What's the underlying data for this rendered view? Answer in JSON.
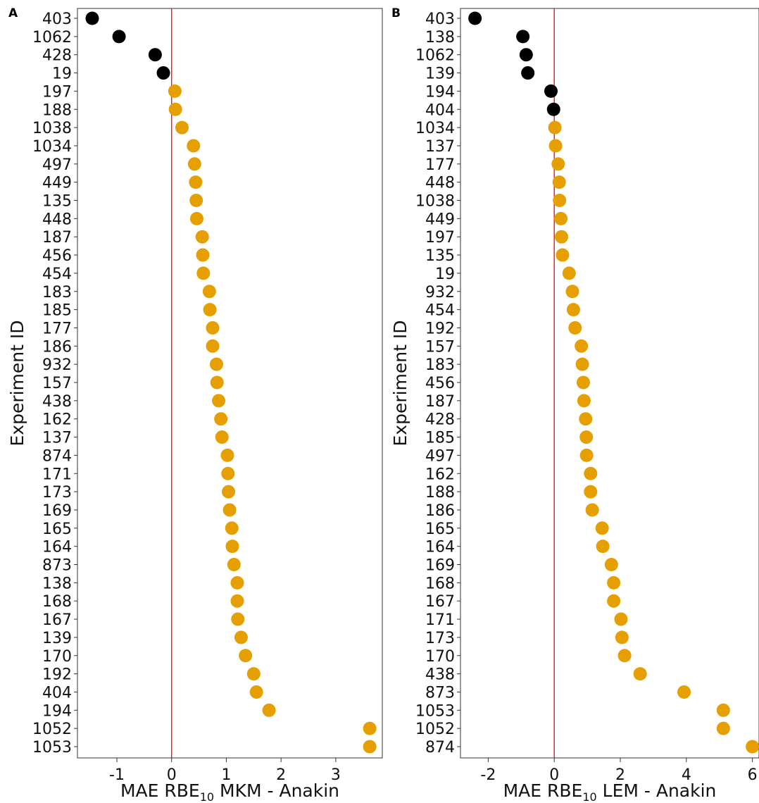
{
  "chart_data": [
    {
      "type": "scatter",
      "panel_label": "A",
      "ylabel": "Experiment ID",
      "xlabel": {
        "main": "MAE RBE",
        "sub": "10",
        "rest": " MKM - Anakin"
      },
      "xlim": [
        -1.72,
        3.85
      ],
      "xticks": [
        -1,
        0,
        1,
        2,
        3
      ],
      "xtick_labels": [
        "-1",
        "0",
        "1",
        "2",
        "3"
      ],
      "reference_line_x": 0,
      "reference_line_color": "#e8191c",
      "negative_color": "#000000",
      "positive_color": "#e69f00",
      "grid": false,
      "legend": "none",
      "categories": [
        "403",
        "1062",
        "428",
        "19",
        "197",
        "188",
        "1038",
        "1034",
        "497",
        "449",
        "135",
        "448",
        "187",
        "456",
        "454",
        "183",
        "185",
        "177",
        "186",
        "932",
        "157",
        "438",
        "162",
        "137",
        "874",
        "171",
        "173",
        "169",
        "165",
        "164",
        "873",
        "138",
        "168",
        "167",
        "139",
        "170",
        "192",
        "404",
        "194",
        "1052",
        "1053"
      ],
      "values": [
        -1.45,
        -0.96,
        -0.3,
        -0.15,
        0.06,
        0.07,
        0.19,
        0.4,
        0.42,
        0.44,
        0.45,
        0.46,
        0.56,
        0.57,
        0.58,
        0.69,
        0.7,
        0.75,
        0.75,
        0.82,
        0.83,
        0.86,
        0.9,
        0.92,
        1.02,
        1.03,
        1.04,
        1.06,
        1.1,
        1.11,
        1.14,
        1.2,
        1.2,
        1.21,
        1.27,
        1.35,
        1.5,
        1.55,
        1.78,
        3.62,
        3.62
      ]
    },
    {
      "type": "scatter",
      "panel_label": "B",
      "ylabel": "Experiment ID",
      "xlabel": {
        "main": "MAE RBE",
        "sub": "10",
        "rest": " LEM - Anakin"
      },
      "xlim": [
        -2.84,
        6.2
      ],
      "xticks": [
        -2,
        0,
        2,
        4,
        6
      ],
      "xtick_labels": [
        "-2",
        "0",
        "2",
        "4",
        "6"
      ],
      "reference_line_x": 0,
      "reference_line_color": "#e8191c",
      "negative_color": "#000000",
      "positive_color": "#e69f00",
      "grid": false,
      "legend": "none",
      "categories": [
        "403",
        "138",
        "1062",
        "139",
        "194",
        "404",
        "1034",
        "137",
        "177",
        "448",
        "1038",
        "449",
        "197",
        "135",
        "19",
        "932",
        "454",
        "192",
        "157",
        "183",
        "456",
        "187",
        "428",
        "185",
        "497",
        "162",
        "188",
        "186",
        "165",
        "164",
        "169",
        "168",
        "167",
        "171",
        "173",
        "170",
        "438",
        "873",
        "1053",
        "1052",
        "874"
      ],
      "values": [
        -2.4,
        -0.95,
        -0.85,
        -0.8,
        -0.1,
        -0.02,
        0.02,
        0.04,
        0.12,
        0.15,
        0.16,
        0.2,
        0.22,
        0.25,
        0.45,
        0.55,
        0.58,
        0.63,
        0.82,
        0.85,
        0.88,
        0.9,
        0.95,
        0.97,
        0.98,
        1.1,
        1.1,
        1.15,
        1.45,
        1.47,
        1.73,
        1.8,
        1.8,
        2.02,
        2.05,
        2.13,
        2.6,
        3.93,
        5.12,
        5.12,
        6.0
      ]
    }
  ]
}
